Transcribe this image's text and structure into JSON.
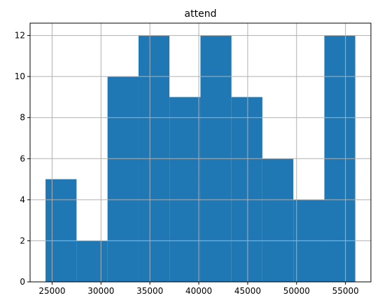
{
  "chart_data": {
    "type": "histogram",
    "title": "attend",
    "xlabel": "",
    "ylabel": "",
    "bins": [
      {
        "x0": 24330,
        "x1": 27500,
        "count": 5
      },
      {
        "x0": 27500,
        "x1": 30670,
        "count": 2
      },
      {
        "x0": 30670,
        "x1": 33840,
        "count": 10
      },
      {
        "x0": 33840,
        "x1": 37000,
        "count": 12
      },
      {
        "x0": 37000,
        "x1": 40170,
        "count": 9
      },
      {
        "x0": 40170,
        "x1": 43340,
        "count": 12
      },
      {
        "x0": 43340,
        "x1": 46500,
        "count": 9
      },
      {
        "x0": 46500,
        "x1": 49670,
        "count": 6
      },
      {
        "x0": 49670,
        "x1": 52840,
        "count": 4
      },
      {
        "x0": 52840,
        "x1": 56000,
        "count": 12
      }
    ],
    "xlim": [
      22750,
      57600
    ],
    "ylim": [
      0,
      12.6
    ],
    "xticks": [
      25000,
      30000,
      35000,
      40000,
      45000,
      50000,
      55000
    ],
    "yticks": [
      0,
      2,
      4,
      6,
      8,
      10,
      12
    ],
    "grid": true,
    "bar_color": "#1f77b4",
    "grid_color": "#b0b0b0"
  }
}
